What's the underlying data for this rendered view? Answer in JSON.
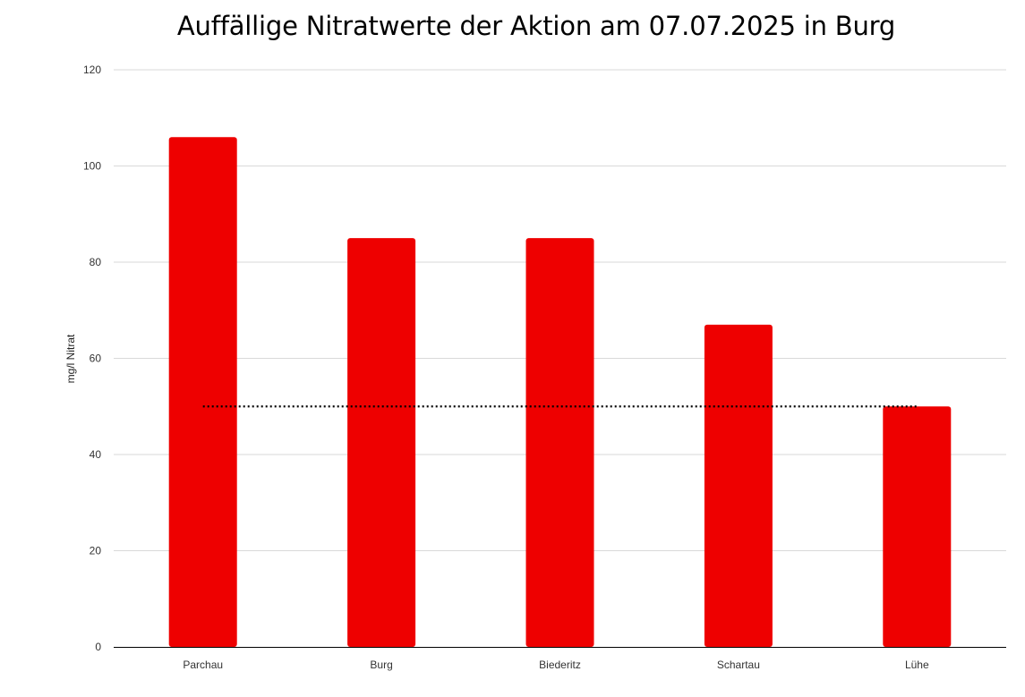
{
  "chart_data": {
    "type": "bar",
    "title": "Auffällige Nitratwerte der Aktion am 07.07.2025 in Burg",
    "xlabel": "",
    "ylabel": "mg/l Nitrat",
    "categories": [
      "Parchau",
      "Burg",
      "Biederitz",
      "Schartau",
      "Lühe"
    ],
    "series": [
      {
        "values": [
          106,
          85,
          85,
          67,
          50
        ],
        "color": "#ee0000"
      }
    ],
    "reference_line": {
      "value": 50,
      "style": "dotted",
      "color": "#000000"
    },
    "ylim": [
      0,
      120
    ],
    "yticks": [
      0,
      20,
      40,
      60,
      80,
      100,
      120
    ],
    "grid": true,
    "legend": "none"
  }
}
